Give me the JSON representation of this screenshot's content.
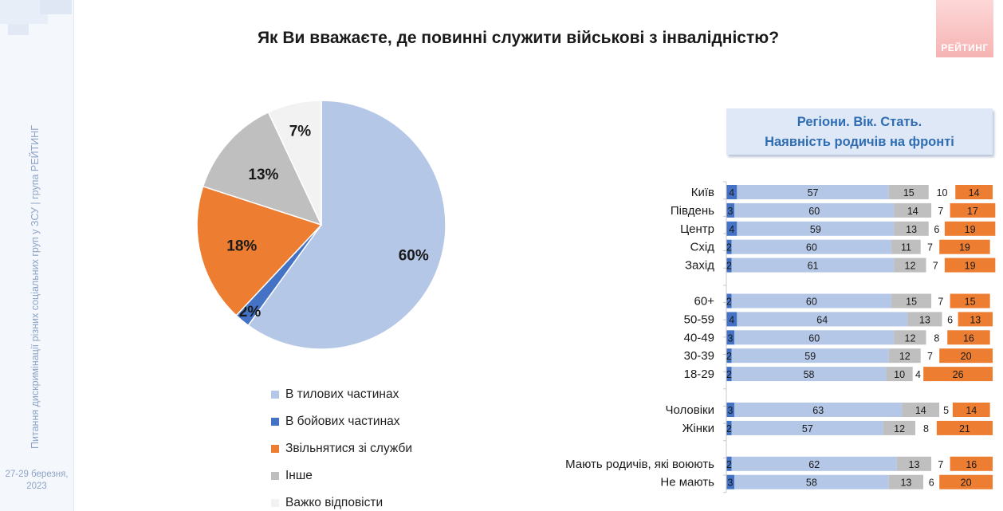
{
  "sidebar": {
    "vertical_text": "Питання дискримінації різних соціальних груп у ЗСУ  |  група РЕЙТИНГ",
    "date_line1": "27-29 березня,",
    "date_line2": "2023"
  },
  "title": "Як Ви вважаєте, де повинні служити військові з інвалідністю?",
  "logo_text": "РЕЙТИНГ",
  "panel": {
    "line1": "Регіони. Вік. Стать.",
    "line2": "Наявність родичів на фронті"
  },
  "colors": {
    "rear": "#b4c7e7",
    "combat": "#4472c4",
    "quit": "#ed7d31",
    "other": "#bfbfbf",
    "hard": "#f2f2f2"
  },
  "chart_data": [
    {
      "type": "pie",
      "categories": [
        "В тилових частинах",
        "В бойових частинах",
        "Звільнятися зі служби",
        "Інше",
        "Важко відповісти"
      ],
      "values": [
        60,
        2,
        18,
        13,
        7
      ],
      "labels": [
        "60%",
        "2%",
        "18%",
        "13%",
        "7%"
      ],
      "legend": "bottom"
    },
    {
      "type": "bar",
      "orientation": "horizontal",
      "stacked": true,
      "series_order": [
        "В бойових частинах",
        "В тилових частинах",
        "Інше",
        "Важко відповісти",
        "Звільнятися зі служби"
      ],
      "groups": [
        {
          "rows": [
            {
              "label": "Київ",
              "values": [
                4,
                57,
                15,
                10,
                14
              ]
            },
            {
              "label": "Південь",
              "values": [
                3,
                60,
                14,
                7,
                17
              ]
            },
            {
              "label": "Центр",
              "values": [
                4,
                59,
                13,
                6,
                19
              ]
            },
            {
              "label": "Схід",
              "values": [
                2,
                60,
                11,
                7,
                19
              ]
            },
            {
              "label": "Захід",
              "values": [
                2,
                61,
                12,
                7,
                19
              ]
            }
          ]
        },
        {
          "rows": [
            {
              "label": "60+",
              "values": [
                2,
                60,
                15,
                7,
                15
              ]
            },
            {
              "label": "50-59",
              "values": [
                4,
                64,
                13,
                6,
                13
              ]
            },
            {
              "label": "40-49",
              "values": [
                3,
                60,
                12,
                8,
                16
              ]
            },
            {
              "label": "30-39",
              "values": [
                2,
                59,
                12,
                7,
                20
              ]
            },
            {
              "label": "18-29",
              "values": [
                2,
                58,
                10,
                4,
                26
              ]
            }
          ]
        },
        {
          "rows": [
            {
              "label": "Чоловіки",
              "values": [
                3,
                63,
                14,
                5,
                14
              ]
            },
            {
              "label": "Жінки",
              "values": [
                2,
                57,
                12,
                8,
                21
              ]
            }
          ]
        },
        {
          "rows": [
            {
              "label": "Мають родичів, які воюють",
              "values": [
                2,
                62,
                13,
                7,
                16
              ]
            },
            {
              "label": "Не мають",
              "values": [
                3,
                58,
                13,
                6,
                20
              ]
            }
          ]
        }
      ]
    }
  ]
}
